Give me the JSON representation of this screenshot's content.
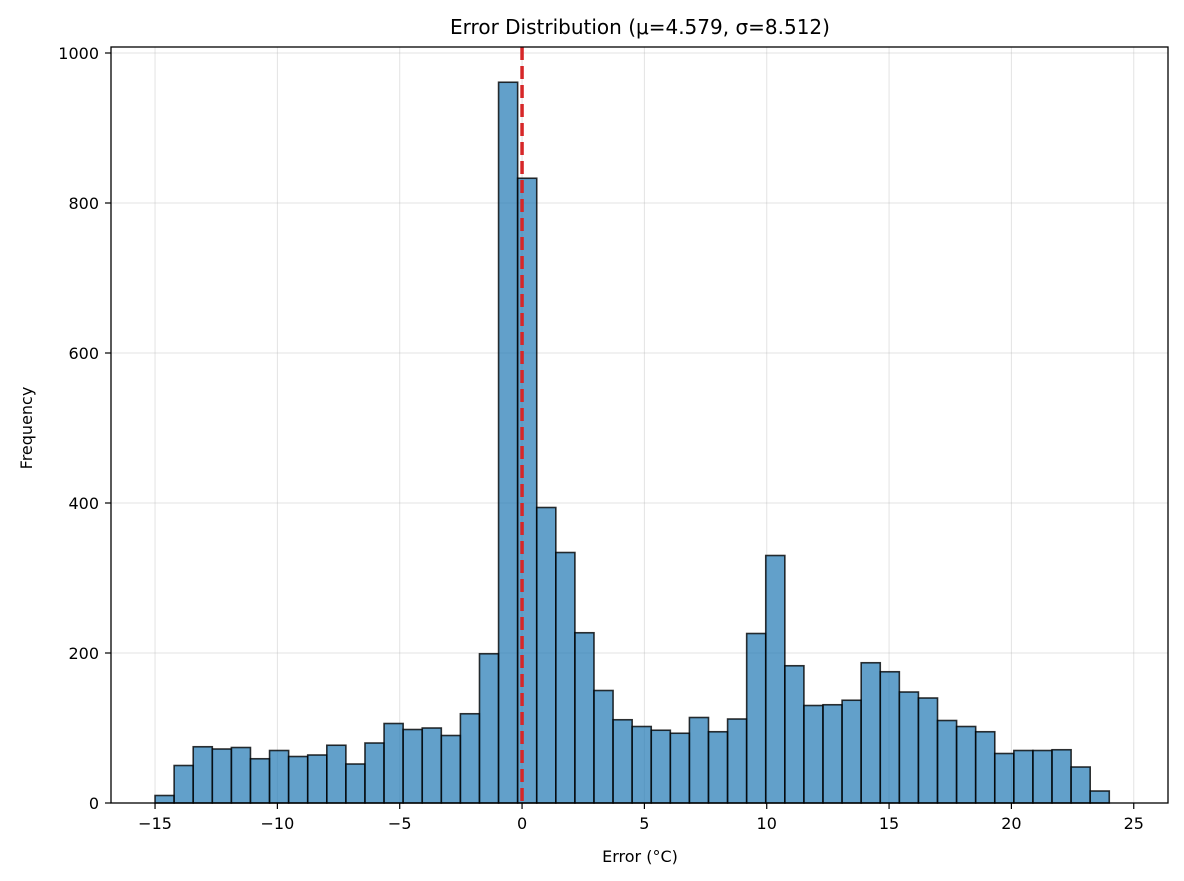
{
  "chart_data": {
    "type": "bar",
    "title": "Error Distribution (μ=4.579, σ=8.512)",
    "xlabel": "Error (°C)",
    "ylabel": "Frequency",
    "xlim": [
      -16.8,
      26.4
    ],
    "ylim": [
      0,
      1008
    ],
    "xticks": [
      -15,
      -10,
      -5,
      0,
      5,
      10,
      15,
      20,
      25
    ],
    "xtick_labels": [
      "−15",
      "−10",
      "−5",
      "0",
      "5",
      "10",
      "15",
      "20",
      "25"
    ],
    "yticks": [
      0,
      200,
      400,
      600,
      800,
      1000
    ],
    "ytick_labels": [
      "0",
      "200",
      "400",
      "600",
      "800",
      "1000"
    ],
    "grid": true,
    "bin_start": -15.0,
    "bin_width": 0.78,
    "values": [
      10,
      50,
      75,
      72,
      74,
      59,
      70,
      62,
      64,
      77,
      52,
      80,
      106,
      98,
      100,
      90,
      119,
      199,
      961,
      833,
      394,
      334,
      227,
      150,
      111,
      102,
      97,
      93,
      114,
      95,
      112,
      226,
      330,
      183,
      130,
      131,
      137,
      187,
      175,
      148,
      140,
      110,
      102,
      95,
      66,
      70,
      70,
      71,
      48,
      16
    ],
    "reference_line": {
      "x": 0,
      "style": "dashed",
      "color": "#d62728"
    },
    "colors": {
      "bar_fill": "#1f77b4",
      "bar_opacity": 0.7,
      "bar_edge": "#000000",
      "grid": "#b0b0b0"
    }
  }
}
